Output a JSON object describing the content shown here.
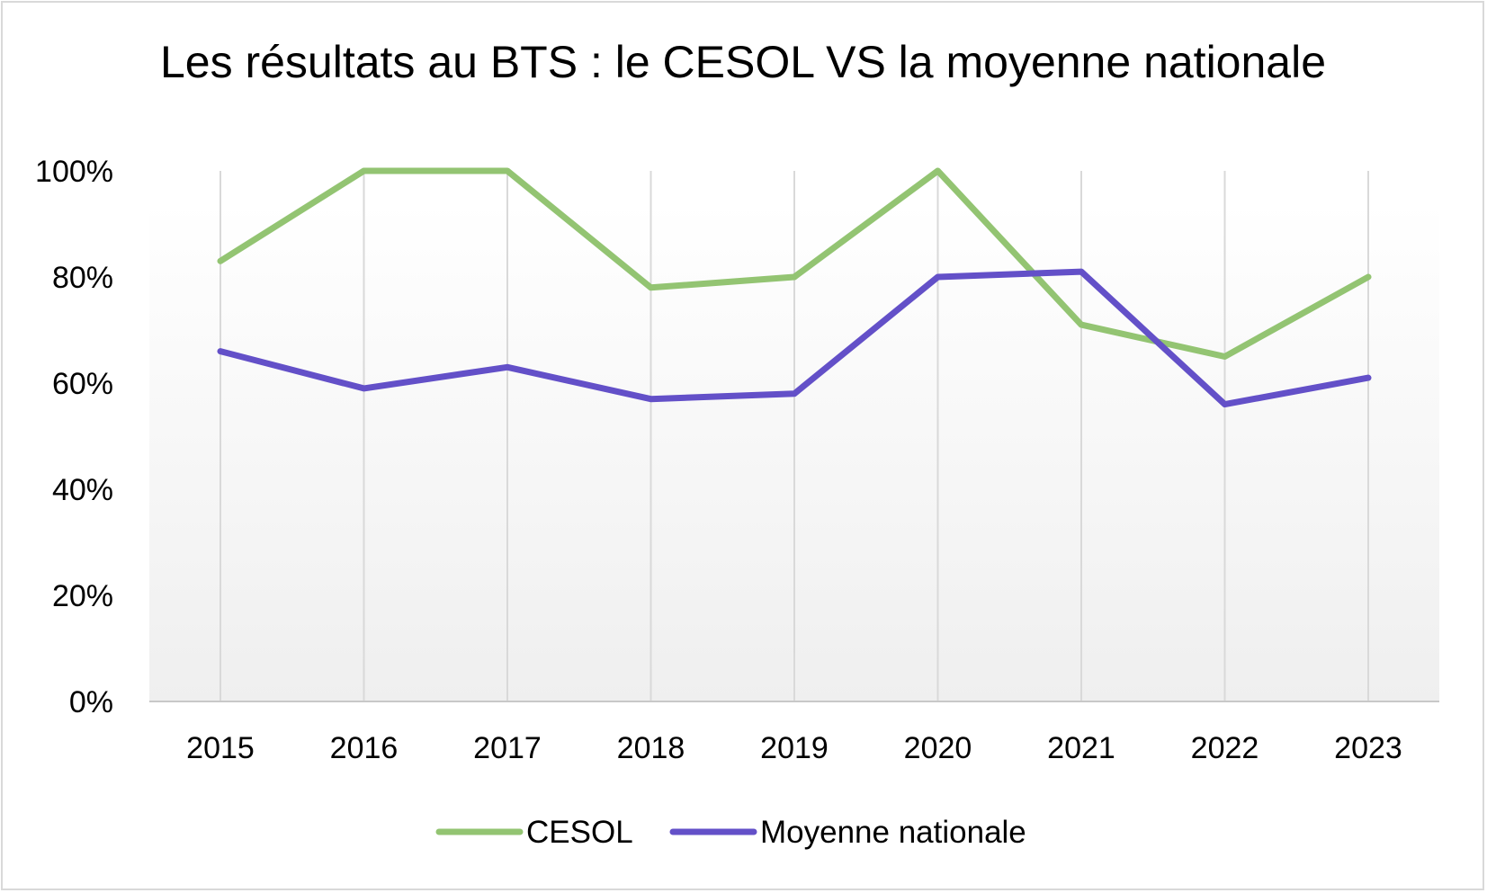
{
  "chart_data": {
    "type": "line",
    "title": "Les résultats au BTS : le CESOL VS la moyenne nationale",
    "xlabel": "",
    "ylabel": "",
    "categories": [
      "2015",
      "2016",
      "2017",
      "2018",
      "2019",
      "2020",
      "2021",
      "2022",
      "2023"
    ],
    "ylim": [
      0,
      100
    ],
    "yticks": [
      "0%",
      "20%",
      "40%",
      "60%",
      "80%",
      "100%"
    ],
    "grid": "vertical",
    "legend": "bottom",
    "series": [
      {
        "name": "CESOL",
        "color": "#93c472",
        "values": [
          83,
          100,
          100,
          78,
          80,
          100,
          71,
          65,
          80
        ]
      },
      {
        "name": "Moyenne nationale",
        "color": "#6350c8",
        "values": [
          66,
          59,
          63,
          57,
          58,
          80,
          81,
          56,
          61
        ]
      }
    ]
  }
}
